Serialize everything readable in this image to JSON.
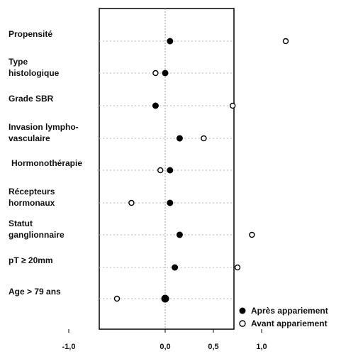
{
  "chart_data": {
    "type": "scatter",
    "categories": [
      [
        "Propensité"
      ],
      [
        "Type",
        "histologique"
      ],
      [
        "Grade SBR"
      ],
      [
        "Invasion lympho-",
        "vasculaire"
      ],
      [
        "Hormonothérapie"
      ],
      [
        "Récepteurs",
        "hormonaux"
      ],
      [
        "Statut",
        "ganglionnaire"
      ],
      [
        "pT ≥ 20mm"
      ],
      [
        "Age > 79 ans"
      ]
    ],
    "series": [
      {
        "name": "Après appariement",
        "marker": "filled",
        "values": [
          0.05,
          0.0,
          -0.1,
          0.15,
          0.05,
          0.05,
          0.15,
          0.1,
          0.0
        ]
      },
      {
        "name": "Avant appariement",
        "marker": "open",
        "values": [
          1.25,
          -0.1,
          0.7,
          0.4,
          -0.05,
          -0.35,
          0.9,
          0.75,
          -0.5
        ]
      }
    ],
    "x_ticks": [
      "-1,0",
      "0,0",
      "0,5",
      "1,0"
    ],
    "x_tick_values": [
      -1.0,
      0.0,
      0.5,
      1.0
    ],
    "xlim": [
      -1.5,
      1.4
    ],
    "reference_line": 0,
    "legend_position": "bottom-right",
    "title": "",
    "xlabel": "",
    "ylabel": ""
  }
}
